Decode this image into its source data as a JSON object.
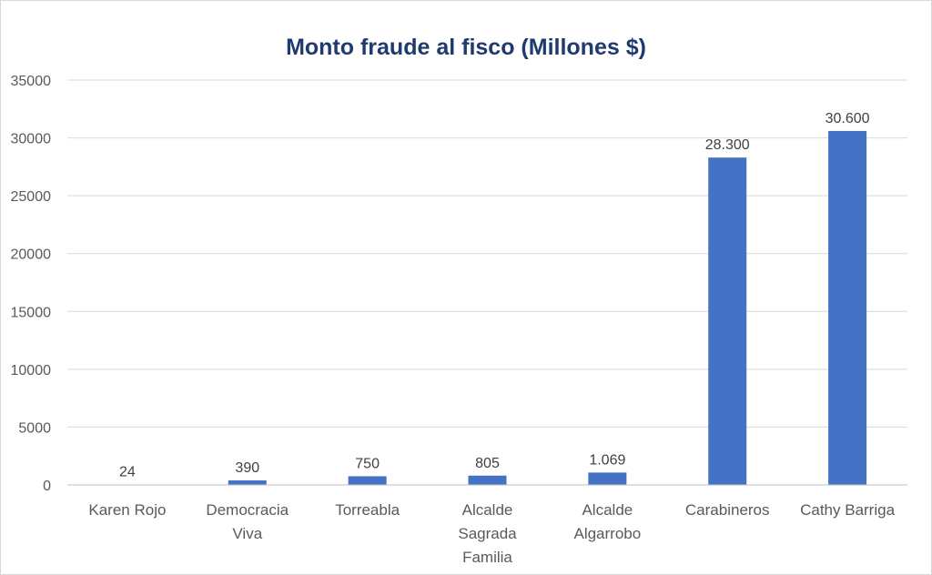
{
  "chart_data": {
    "type": "bar",
    "title": "Monto fraude al fisco (Millones $)",
    "xlabel": "",
    "ylabel": "",
    "categories": [
      "Karen Rojo",
      "Democracia Viva",
      "Torreabla",
      "Alcalde Sagrada Familia",
      "Alcalde Algarrobo",
      "Carabineros",
      "Cathy Barriga"
    ],
    "category_lines": [
      [
        "Karen Rojo"
      ],
      [
        "Democracia",
        "Viva"
      ],
      [
        "Torreabla"
      ],
      [
        "Alcalde",
        "Sagrada",
        "Familia"
      ],
      [
        "Alcalde",
        "Algarrobo"
      ],
      [
        "Carabineros"
      ],
      [
        "Cathy Barriga"
      ]
    ],
    "values": [
      24,
      390,
      750,
      805,
      1069,
      28300,
      30600
    ],
    "data_labels": [
      "24",
      "390",
      "750",
      "805",
      "1.069",
      "28.300",
      "30.600"
    ],
    "ylim": [
      0,
      35000
    ],
    "yticks": [
      0,
      5000,
      10000,
      15000,
      20000,
      25000,
      30000,
      35000
    ],
    "grid": true,
    "legend": "none",
    "bar_color": "#4472c4"
  }
}
